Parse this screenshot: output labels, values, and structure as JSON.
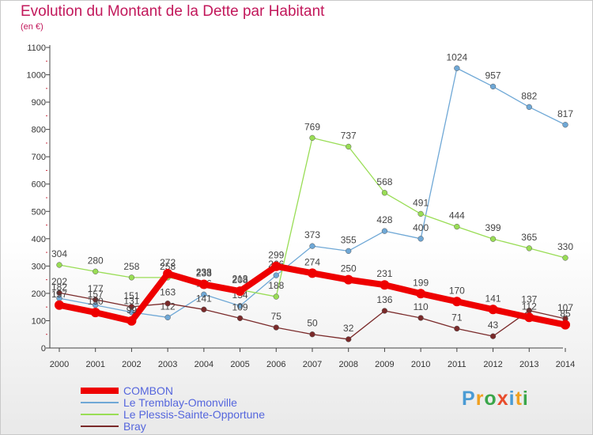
{
  "header": {
    "title": "Evolution du Montant de la Dette par Habitant",
    "unit": "(en €)"
  },
  "logo": {
    "text": "Proxiti"
  },
  "chart_data": {
    "type": "line",
    "title": "Evolution du Montant de la Dette par Habitant",
    "subtitle": "(en €)",
    "ylim": [
      0,
      1100
    ],
    "grid": false,
    "legend_position": "bottom-left",
    "x": [
      "2000",
      "2001",
      "2002",
      "2003",
      "2004",
      "2005",
      "2006",
      "2007",
      "2008",
      "2009",
      "2010",
      "2011",
      "2012",
      "2013",
      "2014"
    ],
    "yticks": [
      "0",
      "100",
      "200",
      "300",
      "400",
      "500",
      "600",
      "700",
      "800",
      "900",
      "1000",
      "1100"
    ],
    "series": [
      {
        "name": "COMBON",
        "color": "#ee0000",
        "values": [
          157,
          130,
          99,
          272,
          233,
          208,
          299,
          274,
          250,
          231,
          199,
          170,
          141,
          112,
          85
        ]
      },
      {
        "name": "Le Tremblay-Omonville",
        "color": "#6fa8d6",
        "values": [
          182,
          157,
          131,
          112,
          196,
          154,
          266,
          373,
          355,
          428,
          400,
          1024,
          957,
          882,
          817
        ]
      },
      {
        "name": "Le Plessis-Sainte-Opportune",
        "color": "#99dd55",
        "values": [
          304,
          280,
          258,
          258,
          238,
          213,
          188,
          769,
          737,
          568,
          491,
          444,
          399,
          365,
          330
        ]
      },
      {
        "name": "Bray",
        "color": "#7a2a2a",
        "values": [
          202,
          177,
          151,
          163,
          141,
          109,
          75,
          50,
          32,
          136,
          110,
          71,
          43,
          137,
          107
        ]
      }
    ]
  }
}
